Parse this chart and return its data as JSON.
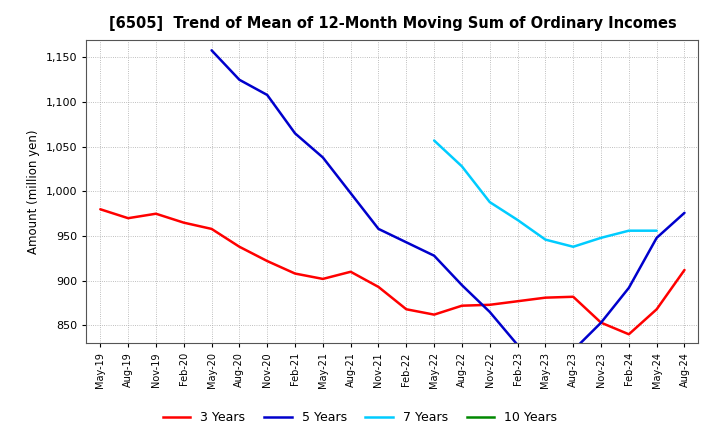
{
  "title": "[6505]  Trend of Mean of 12-Month Moving Sum of Ordinary Incomes",
  "ylabel": "Amount (million yen)",
  "background_color": "#ffffff",
  "plot_background": "#ffffff",
  "ylim": [
    830,
    1170
  ],
  "yticks": [
    850,
    900,
    950,
    1000,
    1050,
    1100,
    1150
  ],
  "x_labels": [
    "May-19",
    "Aug-19",
    "Nov-19",
    "Feb-20",
    "May-20",
    "Aug-20",
    "Nov-20",
    "Feb-21",
    "May-21",
    "Aug-21",
    "Nov-21",
    "Feb-22",
    "May-22",
    "Aug-22",
    "Nov-22",
    "Feb-23",
    "May-23",
    "Aug-23",
    "Nov-23",
    "Feb-24",
    "May-24",
    "Aug-24"
  ],
  "series": {
    "3 Years": {
      "color": "#ff0000",
      "linewidth": 1.8,
      "values": [
        980,
        970,
        975,
        965,
        958,
        938,
        922,
        908,
        902,
        910,
        893,
        868,
        862,
        872,
        873,
        877,
        881,
        882,
        853,
        840,
        868,
        912
      ]
    },
    "5 Years": {
      "color": "#0000cc",
      "linewidth": 1.8,
      "values": [
        null,
        null,
        null,
        null,
        1158,
        1125,
        1108,
        1065,
        1038,
        998,
        958,
        943,
        928,
        895,
        865,
        828,
        823,
        822,
        853,
        892,
        948,
        976
      ]
    },
    "7 Years": {
      "color": "#00ccff",
      "linewidth": 1.8,
      "values": [
        null,
        null,
        null,
        null,
        null,
        null,
        null,
        null,
        null,
        null,
        null,
        null,
        1057,
        1028,
        988,
        968,
        946,
        938,
        948,
        956,
        956,
        null
      ]
    },
    "10 Years": {
      "color": "#008800",
      "linewidth": 1.8,
      "values": [
        null,
        null,
        null,
        null,
        null,
        null,
        null,
        null,
        null,
        null,
        null,
        null,
        null,
        null,
        null,
        null,
        null,
        null,
        null,
        null,
        null,
        null
      ]
    }
  }
}
